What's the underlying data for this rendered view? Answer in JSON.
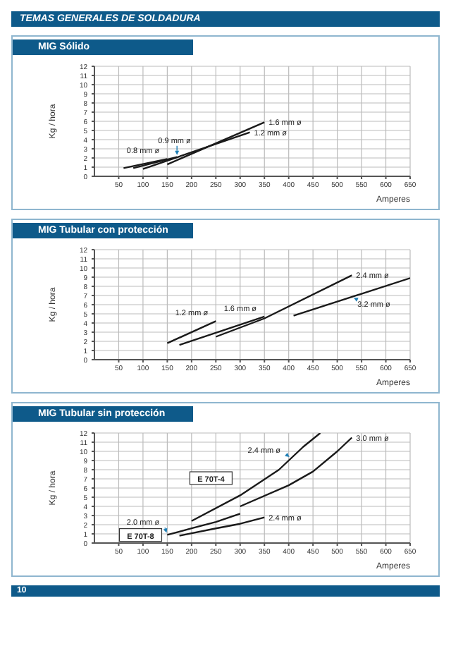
{
  "chart_data": [
    {
      "type": "line",
      "title": "MIG Sólido",
      "xlabel": "Amperes",
      "ylabel": "Kg / hora",
      "annotations": [
        "TEMAS GENERALES DE SOLDADURA",
        "10"
      ],
      "xlim": [
        0,
        650
      ],
      "xticks": [
        50,
        100,
        150,
        200,
        250,
        300,
        350,
        400,
        450,
        500,
        550,
        600,
        650
      ],
      "ylim": [
        0,
        12
      ],
      "yticks": [
        0,
        1,
        2,
        3,
        4,
        5,
        6,
        7,
        8,
        9,
        10,
        11,
        12
      ],
      "grid": true,
      "marker": "none",
      "series": [
        {
          "name": "0.8 mm ø",
          "color": "#1a1a1a",
          "x": [
            60,
            150
          ],
          "values": [
            0.9,
            1.9
          ]
        },
        {
          "name": "0.9 mm ø",
          "color": "#1a1a1a",
          "x": [
            80,
            170
          ],
          "values": [
            0.9,
            2.1
          ]
        },
        {
          "name": "1.2 mm ø",
          "color": "#1a1a1a",
          "x": [
            100,
            320
          ],
          "values": [
            0.8,
            4.8
          ]
        },
        {
          "name": "1.6 mm ø",
          "color": "#1a1a1a",
          "x": [
            150,
            350
          ],
          "values": [
            1.3,
            5.9
          ]
        }
      ]
    },
    {
      "type": "line",
      "title": "MIG Tubular con protección",
      "xlabel": "Amperes",
      "ylabel": "Kg / hora",
      "xlim": [
        0,
        650
      ],
      "xticks": [
        50,
        100,
        150,
        200,
        250,
        300,
        350,
        400,
        450,
        500,
        550,
        600,
        650
      ],
      "ylim": [
        0,
        12
      ],
      "yticks": [
        0,
        1,
        2,
        3,
        4,
        5,
        6,
        7,
        8,
        9,
        10,
        11,
        12
      ],
      "grid": true,
      "marker": "none",
      "series": [
        {
          "name": "1.2 mm ø",
          "color": "#1a1a1a",
          "x": [
            150,
            250
          ],
          "values": [
            1.8,
            4.2
          ]
        },
        {
          "name": "1.6 mm ø",
          "color": "#1a1a1a",
          "x": [
            175,
            350
          ],
          "values": [
            1.6,
            4.7
          ]
        },
        {
          "name": "2.4 mm ø",
          "color": "#1a1a1a",
          "x": [
            250,
            350,
            530
          ],
          "values": [
            2.5,
            4.5,
            9.2
          ]
        },
        {
          "name": "3.2 mm ø",
          "color": "#1a1a1a",
          "x": [
            410,
            650
          ],
          "values": [
            4.8,
            8.9
          ]
        }
      ]
    },
    {
      "type": "line",
      "title": "MIG Tubular sin protección",
      "xlabel": "Amperes",
      "ylabel": "Kg / hora",
      "annotations": [
        {
          "text": "E 70T-4",
          "x": 240,
          "y": 7
        },
        {
          "text": "E 70T-8",
          "x": 95,
          "y": 0.8
        }
      ],
      "xlim": [
        0,
        650
      ],
      "xticks": [
        50,
        100,
        150,
        200,
        250,
        300,
        350,
        400,
        450,
        500,
        550,
        600,
        650
      ],
      "ylim": [
        0,
        12
      ],
      "yticks": [
        0,
        1,
        2,
        3,
        4,
        5,
        6,
        7,
        8,
        9,
        10,
        11,
        12
      ],
      "grid": true,
      "marker": "none",
      "series": [
        {
          "name": "2.4 mm ø",
          "color": "#1a1a1a",
          "x": [
            200,
            300,
            380,
            430,
            465
          ],
          "values": [
            2.4,
            5.2,
            8,
            10.5,
            12
          ]
        },
        {
          "name": "3.0 mm ø",
          "color": "#1a1a1a",
          "x": [
            300,
            400,
            450,
            500,
            530
          ],
          "values": [
            4,
            6.3,
            7.8,
            10,
            11.5
          ]
        },
        {
          "name": "2.0 mm ø",
          "color": "#1a1a1a",
          "x": [
            150,
            200,
            250,
            300
          ],
          "values": [
            0.9,
            1.6,
            2.3,
            3.2
          ]
        },
        {
          "name": "2.4 mm ø",
          "color": "#1a1a1a",
          "x": [
            175,
            250,
            300,
            350
          ],
          "values": [
            0.8,
            1.6,
            2.1,
            2.8
          ]
        }
      ]
    }
  ]
}
